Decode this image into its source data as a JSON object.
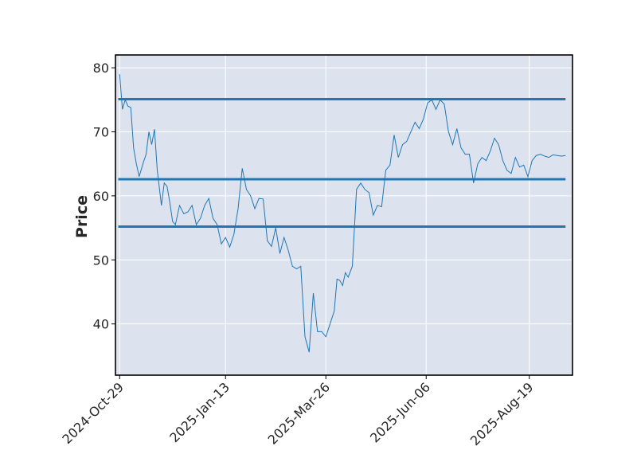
{
  "chart_data": {
    "type": "line",
    "title": "",
    "xlabel": "",
    "ylabel": "Price",
    "ylim": [
      32,
      82
    ],
    "xlim": [
      "2024-10-26",
      "2025-09-19"
    ],
    "grid": true,
    "colors": {
      "background": "#dde3ee",
      "grid": "#ffffff",
      "line": "#1f77b4",
      "frame": "#000000"
    },
    "y_ticks": [
      40,
      50,
      60,
      70,
      80
    ],
    "x_ticks": [
      "2024-Oct-29",
      "2025-Jan-13",
      "2025-Mar-26",
      "2025-Jun-06",
      "2025-Aug-19"
    ],
    "x_tick_dates": [
      "2024-10-29",
      "2025-01-13",
      "2025-03-26",
      "2025-06-06",
      "2025-08-19"
    ],
    "hlines": [
      75.1,
      62.6,
      55.2
    ],
    "hline_range": [
      "2024-10-28",
      "2025-09-14"
    ],
    "series": [
      {
        "x": [
          "2024-10-29",
          "2024-10-31",
          "2024-11-02",
          "2024-11-04",
          "2024-11-06",
          "2024-11-08",
          "2024-11-10",
          "2024-11-12",
          "2024-11-15",
          "2024-11-17",
          "2024-11-19",
          "2024-11-21",
          "2024-11-23",
          "2024-11-25",
          "2024-11-28",
          "2024-11-30",
          "2024-12-02",
          "2024-12-04",
          "2024-12-06",
          "2024-12-08",
          "2024-12-11",
          "2024-12-14",
          "2024-12-17",
          "2024-12-20",
          "2024-12-23",
          "2024-12-26",
          "2024-12-29",
          "2025-01-01",
          "2025-01-04",
          "2025-01-07",
          "2025-01-10",
          "2025-01-13",
          "2025-01-16",
          "2025-01-19",
          "2025-01-22",
          "2025-01-25",
          "2025-01-28",
          "2025-01-31",
          "2025-02-03",
          "2025-02-06",
          "2025-02-09",
          "2025-02-12",
          "2025-02-15",
          "2025-02-18",
          "2025-02-21",
          "2025-02-24",
          "2025-02-27",
          "2025-03-02",
          "2025-03-05",
          "2025-03-08",
          "2025-03-11",
          "2025-03-14",
          "2025-03-17",
          "2025-03-20",
          "2025-03-23",
          "2025-03-26",
          "2025-03-29",
          "2025-04-01",
          "2025-04-03",
          "2025-04-05",
          "2025-04-07",
          "2025-04-09",
          "2025-04-11",
          "2025-04-14",
          "2025-04-17",
          "2025-04-20",
          "2025-04-23",
          "2025-04-26",
          "2025-04-29",
          "2025-05-02",
          "2025-05-05",
          "2025-05-08",
          "2025-05-11",
          "2025-05-14",
          "2025-05-17",
          "2025-05-20",
          "2025-05-23",
          "2025-05-26",
          "2025-05-29",
          "2025-06-01",
          "2025-06-04",
          "2025-06-07",
          "2025-06-10",
          "2025-06-13",
          "2025-06-16",
          "2025-06-19",
          "2025-06-22",
          "2025-06-25",
          "2025-06-28",
          "2025-07-01",
          "2025-07-04",
          "2025-07-07",
          "2025-07-10",
          "2025-07-13",
          "2025-07-16",
          "2025-07-19",
          "2025-07-22",
          "2025-07-25",
          "2025-07-28",
          "2025-07-31",
          "2025-08-03",
          "2025-08-06",
          "2025-08-09",
          "2025-08-12",
          "2025-08-15",
          "2025-08-18",
          "2025-08-21",
          "2025-08-24",
          "2025-08-27",
          "2025-08-30",
          "2025-09-02",
          "2025-09-05",
          "2025-09-08",
          "2025-09-11",
          "2025-09-14"
        ],
        "values": [
          79.0,
          73.5,
          75.0,
          74.0,
          73.8,
          67.5,
          65.0,
          63.0,
          65.2,
          66.5,
          70.0,
          68.0,
          70.4,
          64.0,
          58.5,
          62.0,
          61.5,
          59.0,
          56.0,
          55.5,
          58.5,
          57.2,
          57.5,
          58.5,
          55.5,
          56.5,
          58.5,
          59.6,
          56.5,
          55.5,
          52.5,
          53.5,
          52.0,
          54.0,
          58.0,
          64.3,
          61.0,
          60.0,
          58.0,
          59.6,
          59.5,
          53.0,
          52.1,
          55.0,
          51.0,
          53.5,
          51.5,
          49.0,
          48.6,
          49.0,
          38.0,
          35.6,
          44.8,
          38.8,
          38.8,
          38.0,
          40.0,
          42.0,
          47.0,
          46.8,
          46.0,
          48.0,
          47.3,
          49.0,
          61.0,
          62.0,
          61.0,
          60.5,
          57.0,
          58.5,
          58.3,
          64.0,
          64.8,
          69.5,
          66.0,
          68.0,
          68.5,
          70.0,
          71.5,
          70.5,
          72.0,
          74.5,
          75.0,
          73.5,
          75.0,
          74.3,
          70.0,
          68.0,
          70.5,
          67.5,
          66.5,
          66.5,
          62.0,
          65.0,
          66.0,
          65.5,
          67.0,
          69.0,
          68.0,
          65.5,
          64.0,
          63.5,
          66.0,
          64.5,
          64.8,
          63.0,
          65.5,
          66.3,
          66.5,
          66.2,
          66.0,
          66.4,
          66.3,
          66.2,
          66.3
        ]
      }
    ]
  }
}
